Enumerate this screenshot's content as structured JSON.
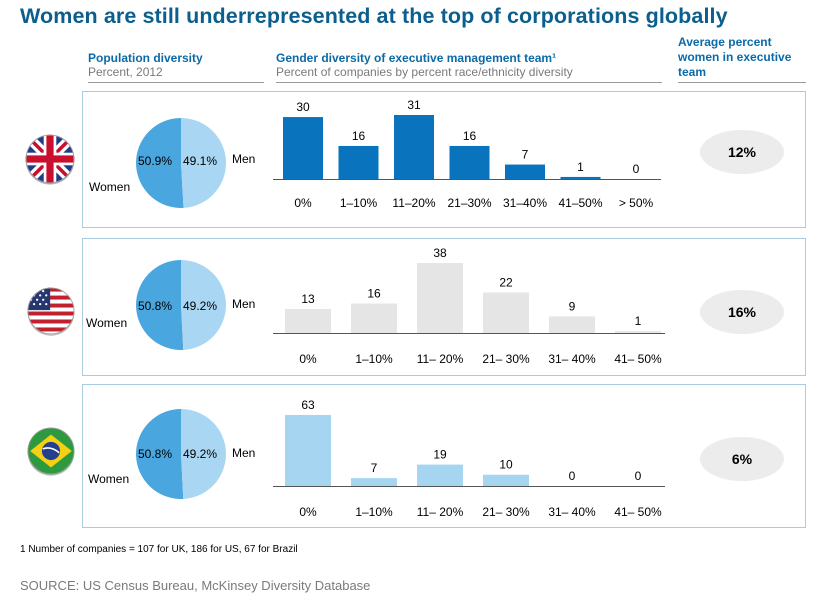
{
  "title": "Women are still underrepresented at the top of corporations globally",
  "headers": {
    "population": {
      "title": "Population diversity",
      "subtitle": "Percent, 2012"
    },
    "gender": {
      "title": "Gender diversity of executive management team¹",
      "subtitle": "Percent of companies by percent race/ethnicity diversity"
    },
    "average": {
      "title": "Average percent women in executive team"
    }
  },
  "colors": {
    "women": "#4aa6de",
    "men": "#a9d6f3",
    "uk_bar": "#0a73bd",
    "us_bar": "#e5e5e5",
    "brazil_bar": "#a6d5f2",
    "avg_bg": "#ececec",
    "title": "#0a5f8e",
    "header": "#0b6aa8"
  },
  "chart_data": [
    {
      "type": "bar",
      "country": "UK",
      "flag_icon": "uk-flag-icon",
      "title": "Gender diversity of executive management team",
      "categories": [
        "0%",
        "1–10%",
        "11–20%",
        "21–30%",
        "31–40%",
        "41–50%",
        "> 50%"
      ],
      "values": [
        30,
        16,
        31,
        16,
        7,
        1,
        0
      ],
      "ylim": [
        0,
        31
      ],
      "population": {
        "women_label": "Women",
        "men_label": "Men",
        "women": 50.9,
        "men": 49.1,
        "women_text": "50.9%",
        "men_text": "49.1%"
      },
      "average_women": "12%"
    },
    {
      "type": "bar",
      "country": "US",
      "flag_icon": "us-flag-icon",
      "title": "Gender diversity of executive management team",
      "categories": [
        "0%",
        "1–10%",
        "11– 20%",
        "21– 30%",
        "31– 40%",
        "41– 50%"
      ],
      "values": [
        13,
        16,
        38,
        22,
        9,
        1
      ],
      "ylim": [
        0,
        38
      ],
      "population": {
        "women_label": "Women",
        "men_label": "Men",
        "women": 50.8,
        "men": 49.2,
        "women_text": "50.8%",
        "men_text": "49.2%"
      },
      "average_women": "16%"
    },
    {
      "type": "bar",
      "country": "Brazil",
      "flag_icon": "brazil-flag-icon",
      "title": "Gender diversity of executive management team",
      "categories": [
        "0%",
        "1–10%",
        "11– 20%",
        "21– 30%",
        "31– 40%",
        "41– 50%"
      ],
      "values": [
        63,
        7,
        19,
        10,
        0,
        0
      ],
      "ylim": [
        0,
        63
      ],
      "population": {
        "women_label": "Women",
        "men_label": "Men",
        "women": 50.8,
        "men": 49.2,
        "women_text": "50.8%",
        "men_text": "49.2%"
      },
      "average_women": "6%"
    }
  ],
  "footnote": "1 Number of companies = 107 for UK, 186 for US, 67 for Brazil",
  "source": "SOURCE: US Census Bureau, McKinsey Diversity Database"
}
